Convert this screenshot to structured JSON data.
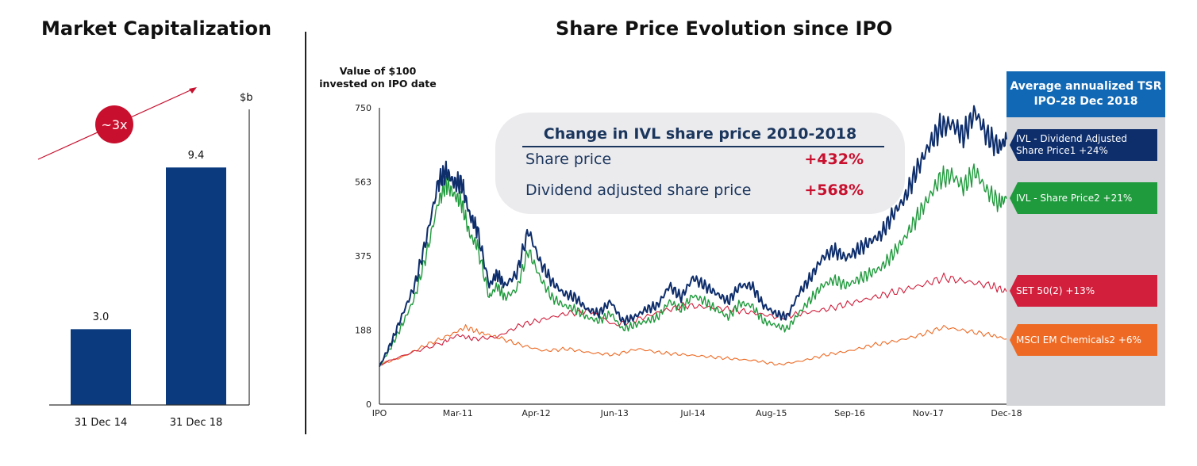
{
  "left_panel": {
    "title": "Market Capitalization",
    "unit": "$b",
    "badge": "~3x"
  },
  "right_panel": {
    "title": "Share Price Evolution since IPO",
    "ylabel_line1": "Value of $100",
    "ylabel_line2": "invested on IPO date"
  },
  "change_box": {
    "title": "Change in IVL share price 2010-2018",
    "rows": [
      {
        "label": "Share price",
        "value": "+432%"
      },
      {
        "label": "Dividend adjusted share price",
        "value": "+568%"
      }
    ]
  },
  "tsr": {
    "header_line1": "Average annualized TSR",
    "header_line2": "IPO-28 Dec 2018",
    "tags": [
      {
        "line1": "IVL - Dividend Adjusted",
        "line2": "Share Price1  +24%",
        "color": "#0d2d6b"
      },
      {
        "line1": "IVL - Share Price2 +21%",
        "line2": "",
        "color": "#1f9a3c"
      },
      {
        "line1": "SET 50(2)  +13%",
        "line2": "",
        "color": "#d11f3c"
      },
      {
        "line1": "MSCI EM Chemicals2  +6%",
        "line2": "",
        "color": "#ee6a24"
      }
    ]
  },
  "chart_data": [
    {
      "type": "bar",
      "title": "Market Capitalization",
      "ylabel": "$b",
      "categories": [
        "31 Dec 14",
        "31 Dec 18"
      ],
      "values": [
        3.0,
        9.4
      ],
      "value_labels": [
        "3.0",
        "9.4"
      ],
      "ylim": [
        0,
        11.7
      ],
      "bar_color": "#0b3a7e"
    },
    {
      "type": "line",
      "title": "Share Price Evolution since IPO",
      "ylabel": "Value of $100 invested on IPO date",
      "x_tick_labels": [
        "IPO",
        "Mar-11",
        "Apr-12",
        "Jun-13",
        "Jul-14",
        "Aug-15",
        "Sep-16",
        "Nov-17",
        "Dec-18"
      ],
      "y_ticks": [
        0,
        188,
        375,
        563,
        750
      ],
      "ylim": [
        0,
        750
      ],
      "xlim": [
        0,
        8
      ],
      "grid": false,
      "series": [
        {
          "name": "IVL - Dividend Adjusted Share Price1",
          "color": "#0d2d6b",
          "x": [
            0,
            0.15,
            0.3,
            0.45,
            0.6,
            0.75,
            0.85,
            0.95,
            1.05,
            1.15,
            1.25,
            1.4,
            1.5,
            1.6,
            1.75,
            1.9,
            2.05,
            2.2,
            2.35,
            2.5,
            2.65,
            2.8,
            2.95,
            3.1,
            3.25,
            3.4,
            3.55,
            3.7,
            3.85,
            4.0,
            4.15,
            4.3,
            4.45,
            4.6,
            4.75,
            4.9,
            5.05,
            5.2,
            5.35,
            5.5,
            5.65,
            5.8,
            5.95,
            6.1,
            6.25,
            6.4,
            6.55,
            6.7,
            6.85,
            7.0,
            7.15,
            7.3,
            7.45,
            7.6,
            7.75,
            7.9,
            8.0
          ],
          "y": [
            95,
            155,
            230,
            300,
            420,
            560,
            590,
            560,
            560,
            480,
            440,
            300,
            330,
            300,
            330,
            440,
            360,
            310,
            280,
            270,
            240,
            230,
            260,
            210,
            220,
            240,
            250,
            300,
            270,
            320,
            300,
            280,
            260,
            300,
            300,
            250,
            230,
            220,
            280,
            320,
            370,
            390,
            370,
            390,
            410,
            430,
            480,
            520,
            590,
            650,
            700,
            710,
            680,
            740,
            680,
            650,
            670
          ]
        },
        {
          "name": "IVL - Share Price2",
          "color": "#1f9a3c",
          "x": [
            0,
            0.15,
            0.3,
            0.45,
            0.6,
            0.75,
            0.85,
            0.95,
            1.05,
            1.15,
            1.25,
            1.4,
            1.5,
            1.6,
            1.75,
            1.9,
            2.05,
            2.2,
            2.35,
            2.5,
            2.65,
            2.8,
            2.95,
            3.1,
            3.25,
            3.4,
            3.55,
            3.7,
            3.85,
            4.0,
            4.15,
            4.3,
            4.45,
            4.6,
            4.75,
            4.9,
            5.05,
            5.2,
            5.35,
            5.5,
            5.65,
            5.8,
            5.95,
            6.1,
            6.25,
            6.4,
            6.55,
            6.7,
            6.85,
            7.0,
            7.15,
            7.3,
            7.45,
            7.6,
            7.75,
            7.9,
            8.0
          ],
          "y": [
            95,
            145,
            205,
            270,
            380,
            510,
            560,
            530,
            510,
            430,
            400,
            270,
            300,
            270,
            290,
            390,
            320,
            270,
            250,
            240,
            220,
            210,
            230,
            190,
            200,
            210,
            220,
            260,
            240,
            275,
            260,
            240,
            220,
            255,
            250,
            210,
            200,
            190,
            230,
            265,
            300,
            315,
            300,
            315,
            330,
            345,
            380,
            420,
            470,
            520,
            570,
            580,
            550,
            590,
            540,
            510,
            520
          ]
        },
        {
          "name": "SET 50(2)",
          "color": "#d11f3c",
          "x": [
            0,
            0.4,
            0.8,
            1.0,
            1.2,
            1.5,
            1.8,
            2.1,
            2.4,
            2.7,
            3.0,
            3.3,
            3.6,
            3.9,
            4.2,
            4.5,
            4.8,
            5.1,
            5.4,
            5.7,
            6.0,
            6.3,
            6.6,
            6.9,
            7.2,
            7.5,
            7.8,
            8.0
          ],
          "y": [
            100,
            130,
            155,
            175,
            165,
            170,
            200,
            215,
            230,
            235,
            200,
            215,
            235,
            250,
            245,
            240,
            230,
            220,
            230,
            240,
            255,
            270,
            285,
            300,
            320,
            310,
            300,
            285
          ]
        },
        {
          "name": "MSCI EM Chemicals2",
          "color": "#ee6a24",
          "x": [
            0,
            0.3,
            0.6,
            0.9,
            1.1,
            1.3,
            1.5,
            1.8,
            2.1,
            2.4,
            2.7,
            3.0,
            3.3,
            3.6,
            3.9,
            4.2,
            4.5,
            4.8,
            5.1,
            5.4,
            5.7,
            6.0,
            6.3,
            6.6,
            6.9,
            7.2,
            7.5,
            7.8,
            8.0
          ],
          "y": [
            100,
            120,
            150,
            175,
            195,
            180,
            170,
            150,
            135,
            140,
            130,
            125,
            140,
            130,
            125,
            120,
            115,
            110,
            100,
            110,
            125,
            135,
            150,
            160,
            175,
            195,
            185,
            175,
            165
          ]
        }
      ]
    }
  ]
}
